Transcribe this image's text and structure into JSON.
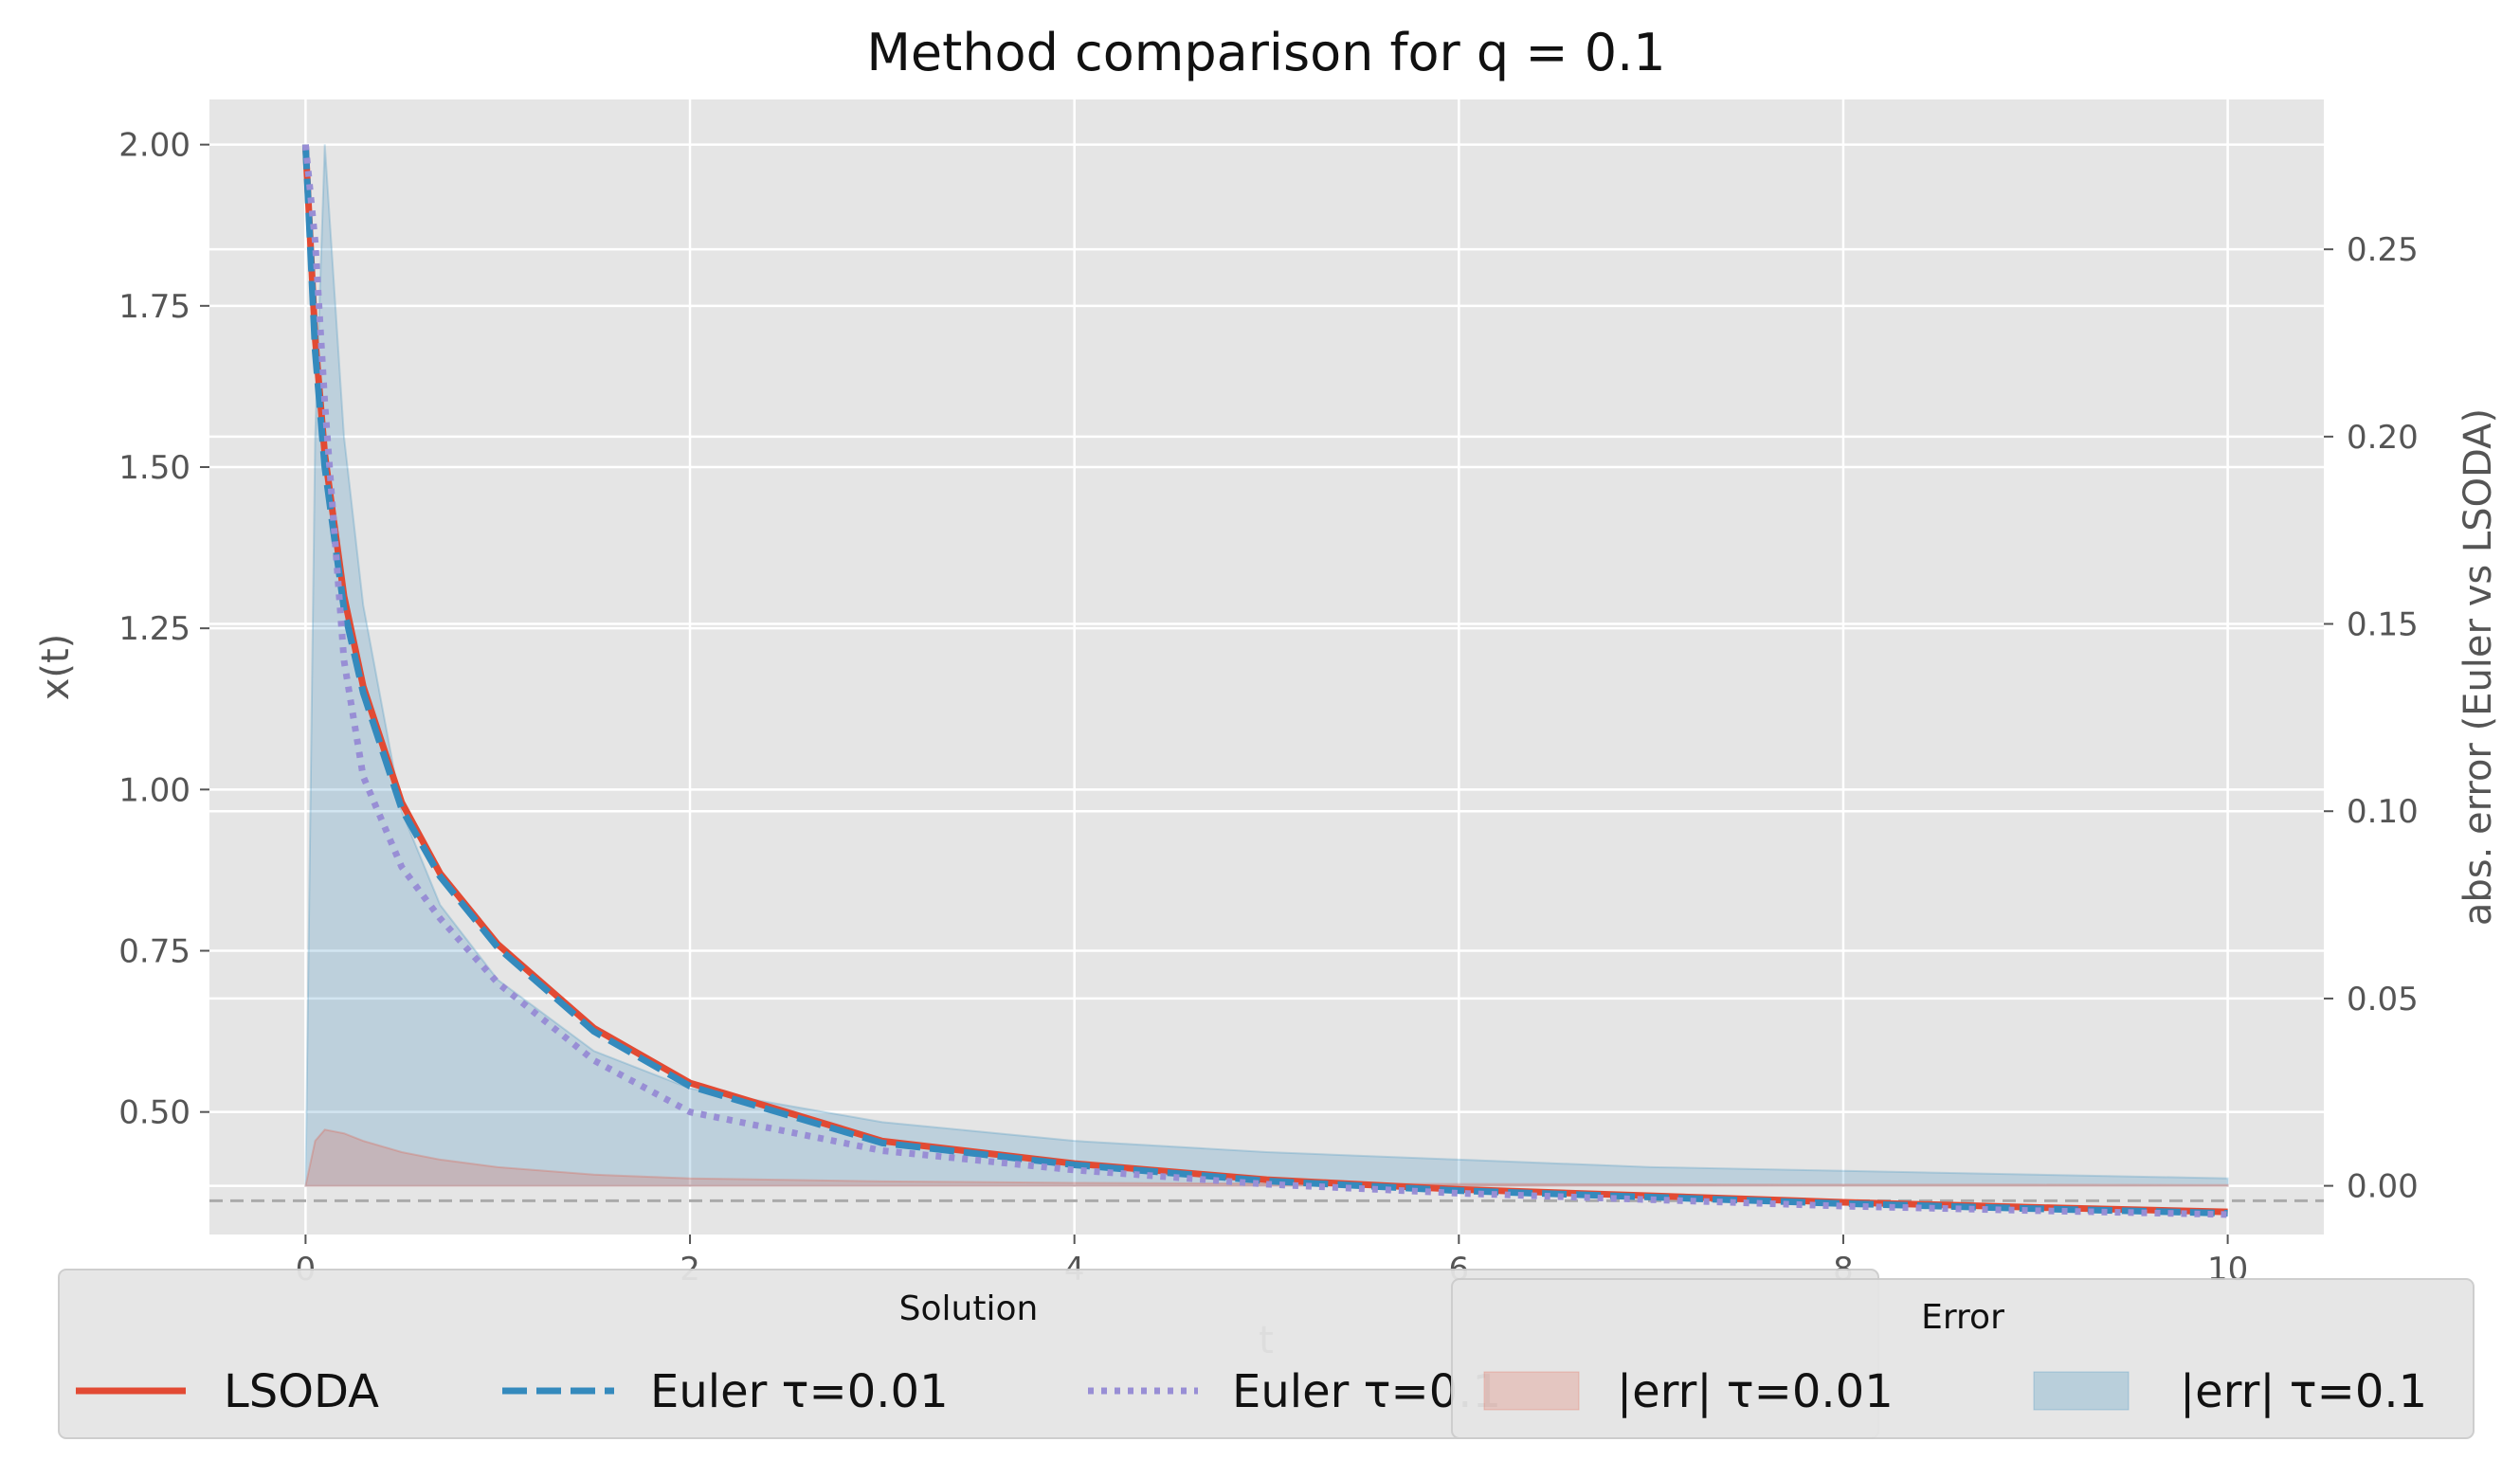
{
  "chart_data": {
    "type": "line",
    "title": "Method comparison for q = 0.1",
    "xlabel": "t",
    "ylabel": "x(t)",
    "y2label": "abs. error (Euler vs LSODA)",
    "xlim": [
      -0.5,
      10.5
    ],
    "ylim": [
      0.31,
      2.07
    ],
    "y2lim": [
      -0.013,
      0.29
    ],
    "xticks": [
      "0",
      "2",
      "4",
      "6",
      "8",
      "10"
    ],
    "xtick_values": [
      0,
      2,
      4,
      6,
      8,
      10
    ],
    "yticks": [
      "0.50",
      "0.75",
      "1.00",
      "1.25",
      "1.50",
      "1.75",
      "2.00"
    ],
    "ytick_values": [
      0.5,
      0.75,
      1.0,
      1.25,
      1.5,
      1.75,
      2.0
    ],
    "y2ticks": [
      "0.00",
      "0.05",
      "0.10",
      "0.15",
      "0.20",
      "0.25"
    ],
    "y2tick_values": [
      0.0,
      0.05,
      0.1,
      0.15,
      0.2,
      0.25
    ],
    "grid": true,
    "x": [
      0,
      0.05,
      0.1,
      0.2,
      0.3,
      0.5,
      0.7,
      1.0,
      1.5,
      2.0,
      3.0,
      4.0,
      5.0,
      6.0,
      7.0,
      8.0,
      9.0,
      10.0
    ],
    "series": [
      {
        "name": "LSODA",
        "axis": "left",
        "style": "solid",
        "color": "#E24A33",
        "values": [
          2.0,
          1.7,
          1.52,
          1.3,
          1.16,
          0.98,
          0.87,
          0.76,
          0.63,
          0.545,
          0.455,
          0.42,
          0.395,
          0.38,
          0.37,
          0.36,
          0.352,
          0.345
        ]
      },
      {
        "name": "Euler τ=0.01",
        "axis": "left",
        "style": "dashed",
        "color": "#348ABD",
        "values": [
          2.0,
          1.68,
          1.5,
          1.28,
          1.15,
          0.97,
          0.865,
          0.755,
          0.625,
          0.54,
          0.452,
          0.418,
          0.393,
          0.378,
          0.368,
          0.358,
          0.35,
          0.343
        ]
      },
      {
        "name": "Euler τ=0.1",
        "axis": "left",
        "style": "dotted",
        "color": "#988ED5",
        "values": [
          2.0,
          1.85,
          1.6,
          1.2,
          1.02,
          0.88,
          0.8,
          0.7,
          0.58,
          0.5,
          0.44,
          0.41,
          0.388,
          0.374,
          0.364,
          0.354,
          0.347,
          0.341
        ]
      }
    ],
    "error_series": [
      {
        "name": "|err| τ=0.01",
        "axis": "right",
        "style": "fill",
        "color": "#E24A33",
        "values": [
          0.0,
          0.012,
          0.015,
          0.014,
          0.012,
          0.009,
          0.007,
          0.005,
          0.003,
          0.002,
          0.0012,
          0.0008,
          0.0006,
          0.0005,
          0.0004,
          0.0003,
          0.0003,
          0.0002
        ]
      },
      {
        "name": "|err| τ=0.1",
        "axis": "right",
        "style": "fill",
        "color": "#348ABD",
        "values": [
          0.0,
          0.2,
          0.278,
          0.2,
          0.155,
          0.1,
          0.075,
          0.055,
          0.036,
          0.026,
          0.017,
          0.012,
          0.009,
          0.007,
          0.005,
          0.004,
          0.003,
          0.002
        ]
      }
    ],
    "reference_line": {
      "axis": "right",
      "value": -0.004,
      "style": "dashed",
      "color": "#aaaaaa"
    },
    "legends": [
      {
        "title": "Solution",
        "placement": "bottom-left",
        "entries": [
          "LSODA",
          "Euler τ=0.01",
          "Euler τ=0.1"
        ]
      },
      {
        "title": "Error",
        "placement": "bottom-right",
        "entries": [
          "|err| τ=0.01",
          "|err| τ=0.1"
        ]
      }
    ]
  }
}
